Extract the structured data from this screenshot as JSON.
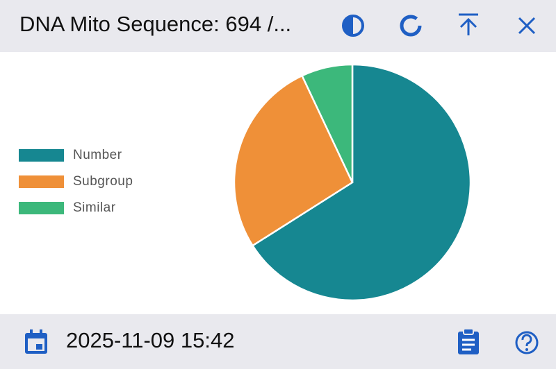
{
  "header": {
    "title": "DNA Mito Sequence: 694 /..."
  },
  "chart_data": {
    "type": "pie",
    "categories": [
      "Number",
      "Subgroup",
      "Similar"
    ],
    "values": [
      66,
      27,
      7
    ],
    "colors": [
      "#168791",
      "#ef9038",
      "#3cb87b"
    ],
    "legend": "left"
  },
  "footer": {
    "timestamp": "2025-11-09 15:42"
  }
}
